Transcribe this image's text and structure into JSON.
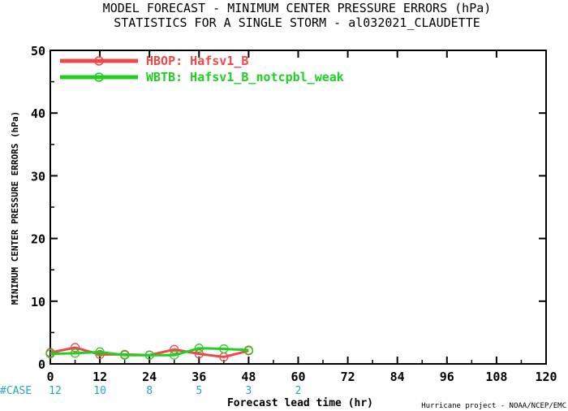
{
  "title_line1": "MODEL FORECAST - MINIMUM CENTER PRESSURE ERRORS (hPa)",
  "title_line2": "STATISTICS FOR A SINGLE STORM - al032021_CLAUDETTE",
  "case_label": "#CASE",
  "credit": "Hurricane project - NOAA/NCEP/EMC",
  "chart_data": {
    "type": "line",
    "title": "MODEL FORECAST - MINIMUM CENTER PRESSURE ERRORS (hPa)",
    "subtitle": "STATISTICS FOR A SINGLE STORM - al032021_CLAUDETTE",
    "xlabel": "Forecast lead time (hr)",
    "ylabel": "MINIMUM CENTER PRESSURE ERRORS (hPa)",
    "xlim": [
      0,
      120
    ],
    "ylim": [
      0,
      50
    ],
    "xticks": [
      0,
      12,
      24,
      36,
      48,
      60,
      72,
      84,
      96,
      108,
      120
    ],
    "yticks": [
      0,
      10,
      20,
      30,
      40,
      50
    ],
    "grid": false,
    "legend_position": "top-left",
    "series": [
      {
        "name": "HBOP: Hafsv1_B",
        "color": "#f04848",
        "x": [
          0,
          6,
          12,
          18,
          24,
          30,
          36,
          42,
          48
        ],
        "y": [
          1.8,
          2.6,
          1.5,
          1.5,
          1.4,
          2.3,
          1.6,
          1.1,
          2.1
        ]
      },
      {
        "name": "WBTB: Hafsv1_B_notcpbl_weak",
        "color": "#20d020",
        "x": [
          0,
          6,
          12,
          18,
          24,
          30,
          36,
          42,
          48
        ],
        "y": [
          1.6,
          1.7,
          1.9,
          1.4,
          1.4,
          1.4,
          2.5,
          2.4,
          2.2
        ]
      }
    ],
    "case_counts": {
      "x": [
        0,
        12,
        24,
        36,
        48,
        60
      ],
      "values": [
        "12",
        "10",
        "8",
        "5",
        "3",
        "2"
      ]
    }
  }
}
